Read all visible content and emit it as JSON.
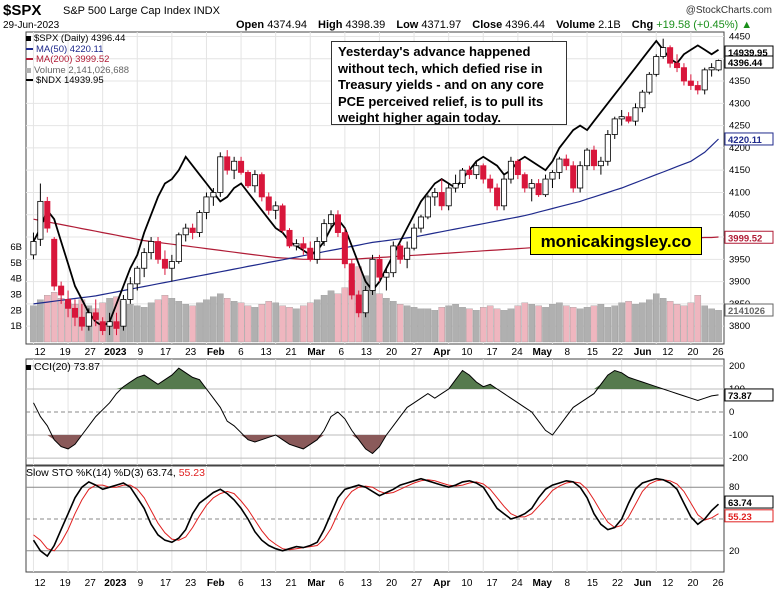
{
  "header": {
    "symbol": "$SPX",
    "description": "S&P 500 Large Cap Index INDX",
    "date": "29-Jun-2023",
    "brand": "@StockCharts.com",
    "open_label": "Open",
    "open": "4374.94",
    "high_label": "High",
    "high": "4398.39",
    "low_label": "Low",
    "low": "4371.97",
    "close_label": "Close",
    "close": "4396.44",
    "volume_label": "Volume",
    "volume": "2.1B",
    "chg_label": "Chg",
    "chg": "+19.58 (+0.45%)",
    "chg_arrow": "▲"
  },
  "legend": {
    "price": "$SPX (Daily) 4396.44",
    "ma50": "MA(50) 4220.11",
    "ma200": "MA(200) 3999.52",
    "volume": "Volume 2,141,026,688",
    "ndx": "$NDX 14939.95"
  },
  "callout": "Yesterday's advance happened without tech, which defied rise in Treasury yields - and on any core PCE perceived relief, is to pull its weight higher again today.",
  "promo": "monicakingsley.co",
  "colors": {
    "up": "#ffffff",
    "down": "#d8163b",
    "ma50": "#1f2a8c",
    "ma200": "#b01c36",
    "ndx": "#000000",
    "volume": "#b0b0b0",
    "volume_down": "#efb6bf",
    "cci_pos": "#567a4e",
    "cci_neg": "#8a5a5a",
    "stoch_d": "#e02020"
  },
  "x_axis": {
    "labels": [
      "12",
      "19",
      "27",
      "2023",
      "9",
      "17",
      "23",
      "Feb",
      "6",
      "13",
      "21",
      "Mar",
      "6",
      "13",
      "20",
      "27",
      "Apr",
      "10",
      "17",
      "24",
      "May",
      "8",
      "15",
      "22",
      "Jun",
      "12",
      "20",
      "26"
    ],
    "bold": [
      "2023",
      "Feb",
      "Mar",
      "Apr",
      "May",
      "Jun"
    ]
  },
  "cci": {
    "title": "CCI(20) 73.87",
    "value": "73.87",
    "ticks": [
      "200",
      "100",
      "0",
      "-100",
      "-200"
    ]
  },
  "stoch": {
    "title_prefix": "Slow STO %K(14) %D(3) 63.74, ",
    "title_d": "55.23",
    "k_value": "63.74",
    "d_value": "55.23",
    "ticks": [
      "80",
      "50",
      "20"
    ]
  },
  "chart_data": {
    "type": "candlestick",
    "symbol": "$SPX",
    "price_ticks": [
      3800,
      3850,
      3900,
      3950,
      4000,
      4050,
      4100,
      4150,
      4200,
      4250,
      4300,
      4350,
      4400,
      4450
    ],
    "volume_ticks": [
      "1B",
      "2B",
      "3B",
      "4B",
      "5B",
      "6B"
    ],
    "value_labels": {
      "ndx": "14939.95",
      "price": "4396.44",
      "ma50": "4220.11",
      "ma200": "3999.52",
      "volume": "2141026"
    },
    "ylim": [
      3760,
      4460
    ],
    "candles": [
      {
        "o": 3960,
        "h": 4010,
        "l": 3950,
        "c": 3990
      },
      {
        "o": 3995,
        "h": 4120,
        "l": 3980,
        "c": 4080
      },
      {
        "o": 4080,
        "h": 4090,
        "l": 4010,
        "c": 4020
      },
      {
        "o": 3995,
        "h": 4000,
        "l": 3880,
        "c": 3890
      },
      {
        "o": 3890,
        "h": 3900,
        "l": 3850,
        "c": 3870
      },
      {
        "o": 3860,
        "h": 3880,
        "l": 3820,
        "c": 3840
      },
      {
        "o": 3840,
        "h": 3860,
        "l": 3800,
        "c": 3820
      },
      {
        "o": 3820,
        "h": 3850,
        "l": 3790,
        "c": 3800
      },
      {
        "o": 3800,
        "h": 3840,
        "l": 3790,
        "c": 3830
      },
      {
        "o": 3830,
        "h": 3860,
        "l": 3800,
        "c": 3815
      },
      {
        "o": 3810,
        "h": 3820,
        "l": 3780,
        "c": 3790
      },
      {
        "o": 3800,
        "h": 3830,
        "l": 3780,
        "c": 3810
      },
      {
        "o": 3810,
        "h": 3830,
        "l": 3780,
        "c": 3795
      },
      {
        "o": 3800,
        "h": 3870,
        "l": 3790,
        "c": 3860
      },
      {
        "o": 3860,
        "h": 3910,
        "l": 3850,
        "c": 3895
      },
      {
        "o": 3895,
        "h": 3935,
        "l": 3880,
        "c": 3930
      },
      {
        "o": 3930,
        "h": 3975,
        "l": 3910,
        "c": 3965
      },
      {
        "o": 3965,
        "h": 4000,
        "l": 3950,
        "c": 3990
      },
      {
        "o": 3990,
        "h": 4000,
        "l": 3940,
        "c": 3950
      },
      {
        "o": 3950,
        "h": 3970,
        "l": 3915,
        "c": 3930
      },
      {
        "o": 3930,
        "h": 3960,
        "l": 3900,
        "c": 3945
      },
      {
        "o": 3945,
        "h": 4010,
        "l": 3940,
        "c": 4005
      },
      {
        "o": 4005,
        "h": 4030,
        "l": 3990,
        "c": 4020
      },
      {
        "o": 4020,
        "h": 4030,
        "l": 3995,
        "c": 4010
      },
      {
        "o": 4010,
        "h": 4060,
        "l": 4000,
        "c": 4055
      },
      {
        "o": 4055,
        "h": 4100,
        "l": 4040,
        "c": 4090
      },
      {
        "o": 4090,
        "h": 4110,
        "l": 4070,
        "c": 4100
      },
      {
        "o": 4100,
        "h": 4190,
        "l": 4090,
        "c": 4180
      },
      {
        "o": 4180,
        "h": 4195,
        "l": 4140,
        "c": 4150
      },
      {
        "o": 4150,
        "h": 4180,
        "l": 4130,
        "c": 4170
      },
      {
        "o": 4170,
        "h": 4180,
        "l": 4140,
        "c": 4145
      },
      {
        "o": 4145,
        "h": 4150,
        "l": 4110,
        "c": 4115
      },
      {
        "o": 4115,
        "h": 4150,
        "l": 4100,
        "c": 4140
      },
      {
        "o": 4140,
        "h": 4145,
        "l": 4080,
        "c": 4090
      },
      {
        "o": 4090,
        "h": 4100,
        "l": 4050,
        "c": 4060
      },
      {
        "o": 4060,
        "h": 4080,
        "l": 4040,
        "c": 4070
      },
      {
        "o": 4070,
        "h": 4075,
        "l": 4010,
        "c": 4015
      },
      {
        "o": 4015,
        "h": 4020,
        "l": 3975,
        "c": 3980
      },
      {
        "o": 3980,
        "h": 3995,
        "l": 3970,
        "c": 3985
      },
      {
        "o": 3985,
        "h": 4000,
        "l": 3960,
        "c": 3975
      },
      {
        "o": 3975,
        "h": 3990,
        "l": 3945,
        "c": 3950
      },
      {
        "o": 3950,
        "h": 4000,
        "l": 3940,
        "c": 3990
      },
      {
        "o": 3990,
        "h": 4040,
        "l": 3980,
        "c": 4030
      },
      {
        "o": 4030,
        "h": 4060,
        "l": 4020,
        "c": 4050
      },
      {
        "o": 4050,
        "h": 4060,
        "l": 4000,
        "c": 4010
      },
      {
        "o": 4010,
        "h": 4020,
        "l": 3930,
        "c": 3940
      },
      {
        "o": 3940,
        "h": 3950,
        "l": 3860,
        "c": 3870
      },
      {
        "o": 3870,
        "h": 3880,
        "l": 3820,
        "c": 3830
      },
      {
        "o": 3830,
        "h": 3890,
        "l": 3820,
        "c": 3880
      },
      {
        "o": 3880,
        "h": 3960,
        "l": 3870,
        "c": 3950
      },
      {
        "o": 3950,
        "h": 3960,
        "l": 3900,
        "c": 3910
      },
      {
        "o": 3910,
        "h": 3930,
        "l": 3880,
        "c": 3920
      },
      {
        "o": 3920,
        "h": 3990,
        "l": 3910,
        "c": 3980
      },
      {
        "o": 3980,
        "h": 3985,
        "l": 3940,
        "c": 3950
      },
      {
        "o": 3950,
        "h": 3990,
        "l": 3930,
        "c": 3975
      },
      {
        "o": 3975,
        "h": 4030,
        "l": 3970,
        "c": 4020
      },
      {
        "o": 4020,
        "h": 4050,
        "l": 4010,
        "c": 4045
      },
      {
        "o": 4045,
        "h": 4095,
        "l": 4040,
        "c": 4090
      },
      {
        "o": 4090,
        "h": 4110,
        "l": 4070,
        "c": 4100
      },
      {
        "o": 4100,
        "h": 4130,
        "l": 4060,
        "c": 4070
      },
      {
        "o": 4070,
        "h": 4120,
        "l": 4060,
        "c": 4110
      },
      {
        "o": 4110,
        "h": 4140,
        "l": 4100,
        "c": 4120
      },
      {
        "o": 4120,
        "h": 4155,
        "l": 4110,
        "c": 4150
      },
      {
        "o": 4150,
        "h": 4160,
        "l": 4130,
        "c": 4140
      },
      {
        "o": 4140,
        "h": 4170,
        "l": 4130,
        "c": 4160
      },
      {
        "o": 4160,
        "h": 4165,
        "l": 4120,
        "c": 4130
      },
      {
        "o": 4130,
        "h": 4140,
        "l": 4100,
        "c": 4110
      },
      {
        "o": 4110,
        "h": 4120,
        "l": 4060,
        "c": 4070
      },
      {
        "o": 4070,
        "h": 4140,
        "l": 4060,
        "c": 4130
      },
      {
        "o": 4130,
        "h": 4180,
        "l": 4120,
        "c": 4170
      },
      {
        "o": 4170,
        "h": 4175,
        "l": 4130,
        "c": 4140
      },
      {
        "o": 4140,
        "h": 4145,
        "l": 4100,
        "c": 4110
      },
      {
        "o": 4110,
        "h": 4130,
        "l": 4080,
        "c": 4120
      },
      {
        "o": 4120,
        "h": 4130,
        "l": 4090,
        "c": 4095
      },
      {
        "o": 4095,
        "h": 4140,
        "l": 4090,
        "c": 4130
      },
      {
        "o": 4130,
        "h": 4150,
        "l": 4110,
        "c": 4145
      },
      {
        "o": 4145,
        "h": 4180,
        "l": 4130,
        "c": 4175
      },
      {
        "o": 4175,
        "h": 4185,
        "l": 4150,
        "c": 4160
      },
      {
        "o": 4160,
        "h": 4170,
        "l": 4100,
        "c": 4110
      },
      {
        "o": 4110,
        "h": 4170,
        "l": 4100,
        "c": 4160
      },
      {
        "o": 4160,
        "h": 4200,
        "l": 4150,
        "c": 4195
      },
      {
        "o": 4195,
        "h": 4205,
        "l": 4150,
        "c": 4160
      },
      {
        "o": 4160,
        "h": 4180,
        "l": 4140,
        "c": 4170
      },
      {
        "o": 4170,
        "h": 4240,
        "l": 4160,
        "c": 4230
      },
      {
        "o": 4230,
        "h": 4270,
        "l": 4220,
        "c": 4265
      },
      {
        "o": 4265,
        "h": 4285,
        "l": 4250,
        "c": 4270
      },
      {
        "o": 4270,
        "h": 4280,
        "l": 4255,
        "c": 4260
      },
      {
        "o": 4260,
        "h": 4300,
        "l": 4250,
        "c": 4290
      },
      {
        "o": 4290,
        "h": 4330,
        "l": 4280,
        "c": 4325
      },
      {
        "o": 4325,
        "h": 4370,
        "l": 4320,
        "c": 4365
      },
      {
        "o": 4365,
        "h": 4410,
        "l": 4360,
        "c": 4405
      },
      {
        "o": 4405,
        "h": 4445,
        "l": 4400,
        "c": 4425
      },
      {
        "o": 4425,
        "h": 4430,
        "l": 4380,
        "c": 4390
      },
      {
        "o": 4390,
        "h": 4410,
        "l": 4370,
        "c": 4380
      },
      {
        "o": 4380,
        "h": 4390,
        "l": 4340,
        "c": 4350
      },
      {
        "o": 4350,
        "h": 4365,
        "l": 4330,
        "c": 4340
      },
      {
        "o": 4340,
        "h": 4350,
        "l": 4320,
        "c": 4330
      },
      {
        "o": 4330,
        "h": 4380,
        "l": 4320,
        "c": 4375
      },
      {
        "o": 4375,
        "h": 4390,
        "l": 4360,
        "c": 4380
      },
      {
        "o": 4375,
        "h": 4398,
        "l": 4372,
        "c": 4396
      }
    ],
    "ndx_series": [
      3990,
      4020,
      4060,
      4040,
      3990,
      3940,
      3890,
      3860,
      3830,
      3810,
      3800,
      3810,
      3850,
      3890,
      3930,
      3960,
      4010,
      4050,
      4090,
      4120,
      4130,
      4150,
      4180,
      4160,
      4140,
      4120,
      4100,
      4080,
      4090,
      4110,
      4120,
      4100,
      4080,
      4060,
      4040,
      4020,
      4010,
      3990,
      3980,
      3970,
      3960,
      3970,
      3990,
      4020,
      4040,
      4020,
      3980,
      3940,
      3900,
      3880,
      3900,
      3930,
      3960,
      3990,
      4020,
      4050,
      4080,
      4100,
      4120,
      4130,
      4120,
      4110,
      4130,
      4150,
      4170,
      4180,
      4170,
      4160,
      4140,
      4150,
      4170,
      4180,
      4170,
      4160,
      4150,
      4170,
      4200,
      4220,
      4240,
      4250,
      4240,
      4260,
      4280,
      4300,
      4320,
      4340,
      4360,
      4380,
      4400,
      4420,
      4440,
      4420,
      4400,
      4390,
      4410,
      4420,
      4430,
      4420,
      4410,
      4420
    ],
    "ma50": [
      3850,
      3852,
      3854,
      3856,
      3858,
      3860,
      3862,
      3864,
      3866,
      3868,
      3871,
      3874,
      3877,
      3880,
      3883,
      3886,
      3889,
      3892,
      3895,
      3898,
      3901,
      3904,
      3907,
      3910,
      3913,
      3916,
      3919,
      3922,
      3925,
      3928,
      3931,
      3934,
      3937,
      3940,
      3943,
      3946,
      3949,
      3952,
      3955,
      3958,
      3961,
      3964,
      3967,
      3970,
      3973,
      3976,
      3979,
      3982,
      3985,
      3988,
      3990,
      3992,
      3994,
      3996,
      3998,
      4000,
      4003,
      4006,
      4009,
      4012,
      4015,
      4018,
      4021,
      4024,
      4027,
      4030,
      4033,
      4036,
      4039,
      4042,
      4045,
      4048,
      4052,
      4056,
      4060,
      4064,
      4068,
      4072,
      4076,
      4080,
      4085,
      4090,
      4095,
      4100,
      4105,
      4110,
      4116,
      4122,
      4128,
      4134,
      4140,
      4146,
      4152,
      4158,
      4164,
      4170,
      4180,
      4190,
      4205,
      4220
    ],
    "ma200": [
      4040,
      4037,
      4034,
      4031,
      4028,
      4025,
      4022,
      4019,
      4016,
      4013,
      4010,
      4007,
      4004,
      4001,
      3998,
      3995,
      3992,
      3990,
      3988,
      3986,
      3984,
      3982,
      3980,
      3978,
      3976,
      3974,
      3972,
      3970,
      3968,
      3966,
      3964,
      3962,
      3960,
      3958,
      3956,
      3954,
      3953,
      3952,
      3951,
      3950,
      3950,
      3950,
      3950,
      3950,
      3950,
      3950,
      3950,
      3951,
      3952,
      3953,
      3954,
      3955,
      3956,
      3957,
      3958,
      3959,
      3960,
      3961,
      3962,
      3963,
      3964,
      3965,
      3966,
      3967,
      3968,
      3969,
      3970,
      3971,
      3972,
      3973,
      3974,
      3975,
      3976,
      3977,
      3978,
      3979,
      3980,
      3981,
      3982,
      3983,
      3984,
      3985,
      3986,
      3987,
      3988,
      3989,
      3990,
      3991,
      3992,
      3993,
      3994,
      3995,
      3996,
      3997,
      3997,
      3998,
      3998,
      3999,
      3999,
      4000
    ],
    "volume": [
      2.4,
      2.8,
      3.1,
      3.3,
      2.9,
      2.6,
      2.5,
      2.8,
      2.4,
      2.2,
      2.6,
      2.9,
      3.0,
      2.7,
      2.5,
      2.4,
      2.3,
      2.6,
      2.8,
      3.1,
      2.9,
      2.7,
      2.5,
      2.4,
      2.6,
      2.8,
      3.0,
      3.2,
      2.9,
      2.7,
      2.6,
      2.4,
      2.3,
      2.5,
      2.7,
      2.6,
      2.4,
      2.3,
      2.2,
      2.4,
      2.6,
      2.8,
      3.1,
      3.4,
      3.2,
      3.6,
      4.1,
      5.0,
      4.4,
      3.8,
      3.2,
      2.9,
      2.7,
      2.5,
      2.4,
      2.3,
      2.2,
      2.2,
      2.1,
      2.3,
      2.4,
      2.5,
      2.3,
      2.2,
      2.1,
      2.3,
      2.4,
      2.2,
      2.1,
      2.2,
      2.4,
      2.6,
      2.5,
      2.4,
      2.3,
      2.5,
      2.6,
      2.4,
      2.3,
      2.2,
      2.3,
      2.4,
      2.5,
      2.3,
      2.4,
      2.6,
      2.7,
      2.5,
      2.6,
      2.8,
      3.2,
      2.9,
      2.7,
      2.5,
      2.4,
      2.6,
      3.1,
      2.4,
      2.2,
      2.1
    ],
    "cci": [
      40,
      -20,
      -60,
      -120,
      -150,
      -160,
      -140,
      -100,
      -60,
      -20,
      10,
      40,
      80,
      110,
      130,
      150,
      160,
      140,
      120,
      140,
      160,
      190,
      170,
      150,
      140,
      100,
      60,
      20,
      -40,
      -60,
      -90,
      -120,
      -130,
      -120,
      -110,
      -100,
      -120,
      -140,
      -150,
      -160,
      -140,
      -120,
      -80,
      -20,
      0,
      -30,
      -80,
      -120,
      -160,
      -180,
      -150,
      -100,
      -60,
      -20,
      20,
      40,
      60,
      80,
      60,
      80,
      100,
      140,
      180,
      160,
      130,
      110,
      120,
      100,
      80,
      60,
      40,
      20,
      0,
      -40,
      -80,
      -100,
      -60,
      -20,
      20,
      40,
      60,
      80,
      120,
      160,
      180,
      170,
      150,
      140,
      130,
      120,
      110,
      100,
      90,
      80,
      70,
      60,
      50,
      60,
      70,
      74
    ],
    "stoch_k": [
      30,
      20,
      15,
      25,
      40,
      55,
      70,
      80,
      85,
      82,
      78,
      80,
      82,
      84,
      80,
      70,
      60,
      45,
      35,
      30,
      28,
      32,
      40,
      55,
      65,
      70,
      75,
      78,
      74,
      68,
      60,
      50,
      38,
      30,
      25,
      22,
      20,
      22,
      24,
      23,
      25,
      28,
      40,
      55,
      70,
      78,
      80,
      82,
      80,
      76,
      72,
      75,
      78,
      82,
      84,
      86,
      88,
      86,
      84,
      82,
      80,
      82,
      85,
      86,
      84,
      80,
      70,
      60,
      55,
      50,
      52,
      55,
      60,
      70,
      78,
      82,
      84,
      86,
      85,
      80,
      70,
      55,
      45,
      40,
      42,
      50,
      65,
      78,
      84,
      86,
      88,
      87,
      84,
      78,
      65,
      52,
      45,
      50,
      58,
      64
    ],
    "stoch_d": [
      35,
      30,
      22,
      20,
      28,
      40,
      55,
      68,
      78,
      82,
      82,
      80,
      80,
      82,
      82,
      78,
      70,
      58,
      46,
      37,
      31,
      30,
      33,
      42,
      53,
      63,
      70,
      74,
      76,
      74,
      67,
      59,
      49,
      39,
      31,
      26,
      22,
      21,
      22,
      23,
      24,
      25,
      31,
      41,
      55,
      68,
      76,
      80,
      81,
      80,
      76,
      74,
      75,
      78,
      81,
      84,
      86,
      87,
      86,
      84,
      82,
      81,
      82,
      84,
      85,
      83,
      78,
      70,
      62,
      55,
      52,
      52,
      55,
      62,
      69,
      77,
      81,
      84,
      85,
      84,
      78,
      68,
      57,
      47,
      42,
      44,
      52,
      64,
      76,
      83,
      86,
      87,
      86,
      83,
      76,
      65,
      54,
      49,
      51,
      55
    ]
  }
}
